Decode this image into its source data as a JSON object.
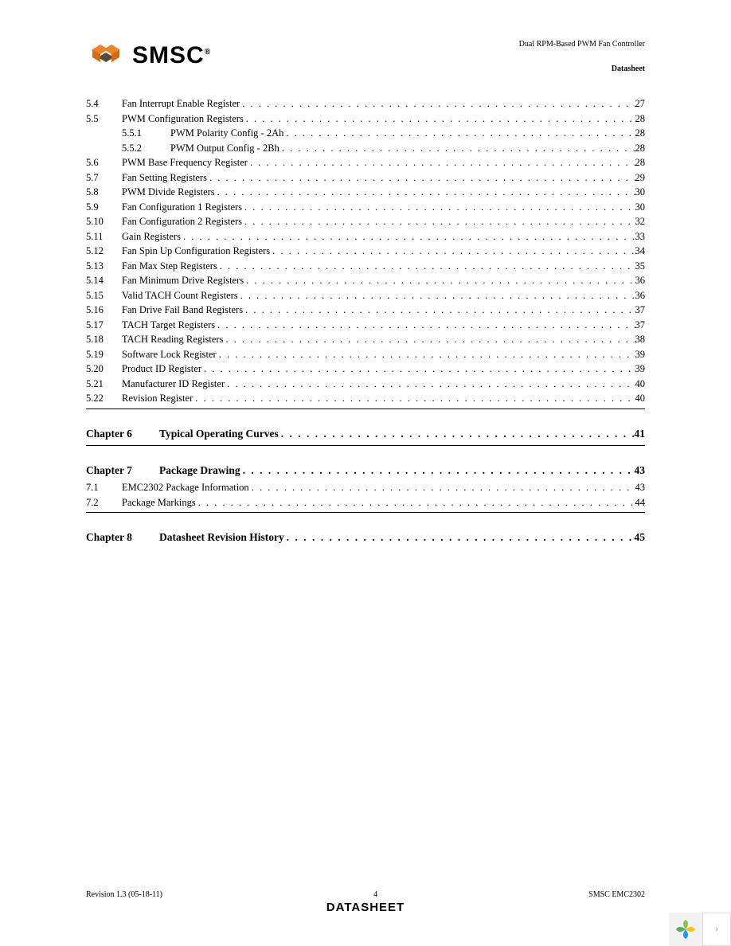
{
  "header": {
    "logo_text": "SMSC",
    "logo_colors": {
      "orange": "#f58220",
      "dark": "#5a4a3a"
    },
    "title": "Dual RPM-Based PWM Fan Controller",
    "subtitle": "Datasheet"
  },
  "toc": {
    "section5": [
      {
        "num": "5.4",
        "title": "Fan Interrupt Enable Register",
        "page": "27"
      },
      {
        "num": "5.5",
        "title": "PWM Configuration Registers",
        "page": "28"
      },
      {
        "num": "5.5.1",
        "title": "PWM Polarity Config - 2Ah",
        "page": "28",
        "sub": true
      },
      {
        "num": "5.5.2",
        "title": "PWM Output Config - 2Bh",
        "page": "28",
        "sub": true
      },
      {
        "num": "5.6",
        "title": "PWM Base Frequency Register",
        "page": "28"
      },
      {
        "num": "5.7",
        "title": "Fan Setting Registers",
        "page": "29"
      },
      {
        "num": "5.8",
        "title": "PWM Divide Registers",
        "page": "30"
      },
      {
        "num": "5.9",
        "title": "Fan Configuration 1 Registers",
        "page": "30"
      },
      {
        "num": "5.10",
        "title": "Fan Configuration 2 Registers",
        "page": "32"
      },
      {
        "num": "5.11",
        "title": "Gain Registers",
        "page": "33"
      },
      {
        "num": "5.12",
        "title": "Fan Spin Up Configuration Registers",
        "page": "34"
      },
      {
        "num": "5.13",
        "title": "Fan Max Step Registers",
        "page": "35"
      },
      {
        "num": "5.14",
        "title": "Fan Minimum Drive Registers",
        "page": "36"
      },
      {
        "num": "5.15",
        "title": "Valid TACH Count Registers",
        "page": "36"
      },
      {
        "num": "5.16",
        "title": "Fan Drive Fail Band Registers",
        "page": "37"
      },
      {
        "num": "5.17",
        "title": "TACH Target Registers",
        "page": "37"
      },
      {
        "num": "5.18",
        "title": "TACH Reading Registers",
        "page": "38"
      },
      {
        "num": "5.19",
        "title": "Software Lock Register",
        "page": "39"
      },
      {
        "num": "5.20",
        "title": "Product ID Register",
        "page": "39"
      },
      {
        "num": "5.21",
        "title": "Manufacturer ID Register",
        "page": "40"
      },
      {
        "num": "5.22",
        "title": "Revision Register",
        "page": "40"
      }
    ],
    "chapter6": {
      "label": "Chapter 6",
      "title": "Typical Operating Curves",
      "page": "41"
    },
    "chapter7": {
      "label": "Chapter 7",
      "title": "Package Drawing",
      "page": "43"
    },
    "section7": [
      {
        "num": "7.1",
        "title": "EMC2302 Package Information",
        "page": "43"
      },
      {
        "num": "7.2",
        "title": "Package Markings",
        "page": "44"
      }
    ],
    "chapter8": {
      "label": "Chapter 8",
      "title": "Datasheet Revision History",
      "page": "45"
    }
  },
  "footer": {
    "left": "Revision 1.3 (05-18-11)",
    "center_page": "4",
    "right": "SMSC EMC2302",
    "bottom": "DATASHEET"
  },
  "widget": {
    "petal_colors": [
      "#8bc34a",
      "#4caf50",
      "#ffc107",
      "#2196f3"
    ]
  }
}
